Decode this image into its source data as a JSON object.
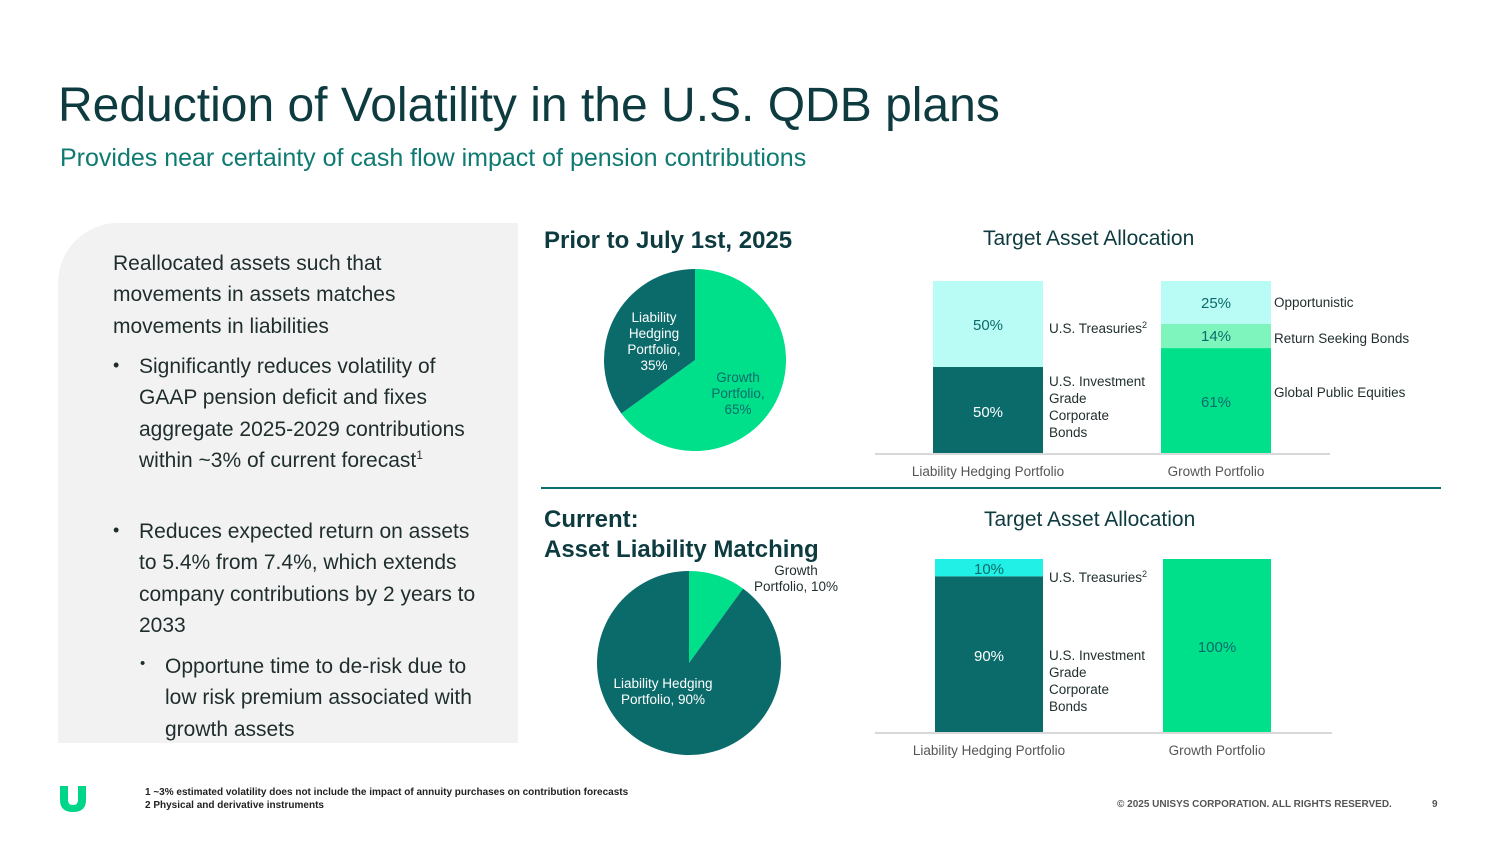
{
  "title": "Reduction of Volatility in the U.S. QDB plans",
  "subtitle": "Provides near certainty of cash flow impact of pension contributions",
  "panel": {
    "intro": "Reallocated assets such that movements in assets matches movements in liabilities",
    "bullets": [
      {
        "text": "Significantly reduces volatility of GAAP pension deficit and fixes aggregate 2025-2029 contributions within ~3% of current forecast",
        "sup": "1"
      },
      {
        "text": "Reduces expected return on assets to 5.4% from 7.4%, which extends company contributions by 2 years to 2033"
      }
    ],
    "sub_bullets": [
      "Opportune time to de-risk due to low risk premium associated with growth assets"
    ],
    "bullet_glyph": "•"
  },
  "sections": {
    "prior_title": "Prior to July 1st, 2025",
    "current_title_line1": "Current:",
    "current_title_line2": "Asset Liability Matching",
    "target_title_1": "Target Asset Allocation",
    "target_title_2": "Target Asset Allocation"
  },
  "colors": {
    "dark_teal": "#0b6b6b",
    "green": "#00e08a",
    "light_cyan": "#b9fbf5",
    "mid_green": "#7ef5bd",
    "cyan": "#20f0e6",
    "text_dark": "#0d3b3f"
  },
  "chart_data": [
    {
      "type": "pie",
      "title": "Prior to July 1st, 2025",
      "slices": [
        {
          "label_lines": [
            "Growth",
            "Portfolio,",
            "65%"
          ],
          "value": 65
        },
        {
          "label_lines": [
            "Liability",
            "Hedging",
            "Portfolio,",
            "35%"
          ],
          "value": 35
        }
      ]
    },
    {
      "type": "bar",
      "stacked": true,
      "title": "Target Asset Allocation",
      "categories": [
        "Liability Hedging Portfolio",
        "Growth Portfolio"
      ],
      "series": [
        {
          "category": "Liability Hedging Portfolio",
          "segments": [
            {
              "label": "50%",
              "value": 50,
              "name_lines": [
                "U.S. Investment",
                "Grade",
                "Corporate",
                "Bonds"
              ]
            },
            {
              "label": "50%",
              "value": 50,
              "name_lines": [
                "U.S. Treasuries"
              ],
              "sup": "2"
            }
          ]
        },
        {
          "category": "Growth Portfolio",
          "segments": [
            {
              "label": "61%",
              "value": 61,
              "name_lines": [
                "Global Public Equities"
              ]
            },
            {
              "label": "14%",
              "value": 14,
              "name_lines": [
                "Return Seeking Bonds"
              ]
            },
            {
              "label": "25%",
              "value": 25,
              "name_lines": [
                "Opportunistic"
              ]
            }
          ]
        }
      ]
    },
    {
      "type": "pie",
      "title": "Current: Asset Liability Matching",
      "slices": [
        {
          "label_lines": [
            "Growth",
            "Portfolio, 10%"
          ],
          "value": 10
        },
        {
          "label_lines": [
            "Liability Hedging",
            "Portfolio, 90%"
          ],
          "value": 90
        }
      ]
    },
    {
      "type": "bar",
      "stacked": true,
      "title": "Target Asset Allocation",
      "categories": [
        "Liability Hedging Portfolio",
        "Growth Portfolio"
      ],
      "series": [
        {
          "category": "Liability Hedging Portfolio",
          "segments": [
            {
              "label": "90%",
              "value": 90,
              "name_lines": [
                "U.S. Investment",
                "Grade",
                "Corporate",
                "Bonds"
              ]
            },
            {
              "label": "10%",
              "value": 10,
              "name_lines": [
                "U.S. Treasuries"
              ],
              "sup": "2"
            }
          ]
        },
        {
          "category": "Growth Portfolio",
          "segments": [
            {
              "label": "100%",
              "value": 100,
              "name_lines": []
            }
          ]
        }
      ]
    }
  ],
  "footer": {
    "notes": [
      "1 ~3% estimated volatility does not include the impact of annuity purchases on contribution forecasts",
      "2 Physical and derivative instruments"
    ],
    "copyright": "© 2025 UNISYS CORPORATION. ALL RIGHTS RESERVED.",
    "page_number": "9",
    "logo_icon": "unisys-u-logo"
  }
}
